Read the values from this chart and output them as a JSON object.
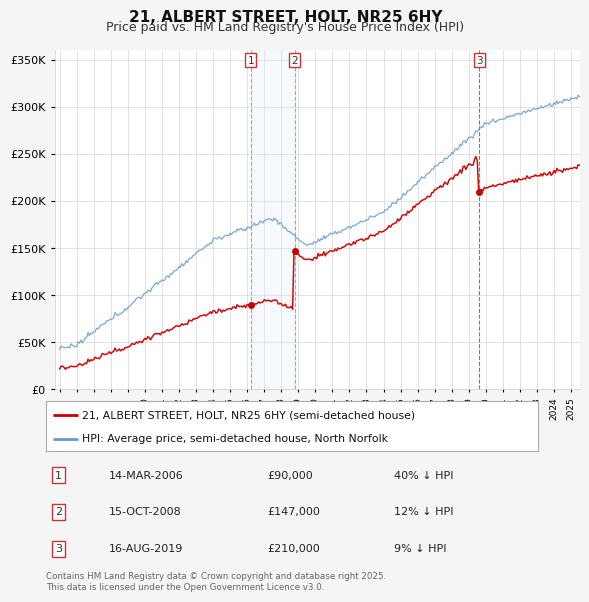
{
  "title": "21, ALBERT STREET, HOLT, NR25 6HY",
  "subtitle": "Price paid vs. HM Land Registry's House Price Index (HPI)",
  "legend_label_red": "21, ALBERT STREET, HOLT, NR25 6HY (semi-detached house)",
  "legend_label_blue": "HPI: Average price, semi-detached house, North Norfolk",
  "footer": "Contains HM Land Registry data © Crown copyright and database right 2025.\nThis data is licensed under the Open Government Licence v3.0.",
  "transactions": [
    {
      "num": 1,
      "date": "14-MAR-2006",
      "price": 90000,
      "note": "40% ↓ HPI",
      "year": 2006.21,
      "vline_style": "blue"
    },
    {
      "num": 2,
      "date": "15-OCT-2008",
      "price": 147000,
      "note": "12% ↓ HPI",
      "year": 2008.79,
      "vline_style": "blue"
    },
    {
      "num": 3,
      "date": "16-AUG-2019",
      "price": 210000,
      "note": "9% ↓ HPI",
      "year": 2019.62,
      "vline_style": "red"
    }
  ],
  "blue_vline_color": "#9999cc",
  "red_vline_color": "#cc4444",
  "shade_color": "#dde8f8",
  "red_color": "#cc0000",
  "blue_color": "#6699cc",
  "background_color": "#f5f5f5",
  "plot_bg_color": "#ffffff",
  "ylim": [
    0,
    360000
  ],
  "xlim": [
    1994.7,
    2025.5
  ]
}
